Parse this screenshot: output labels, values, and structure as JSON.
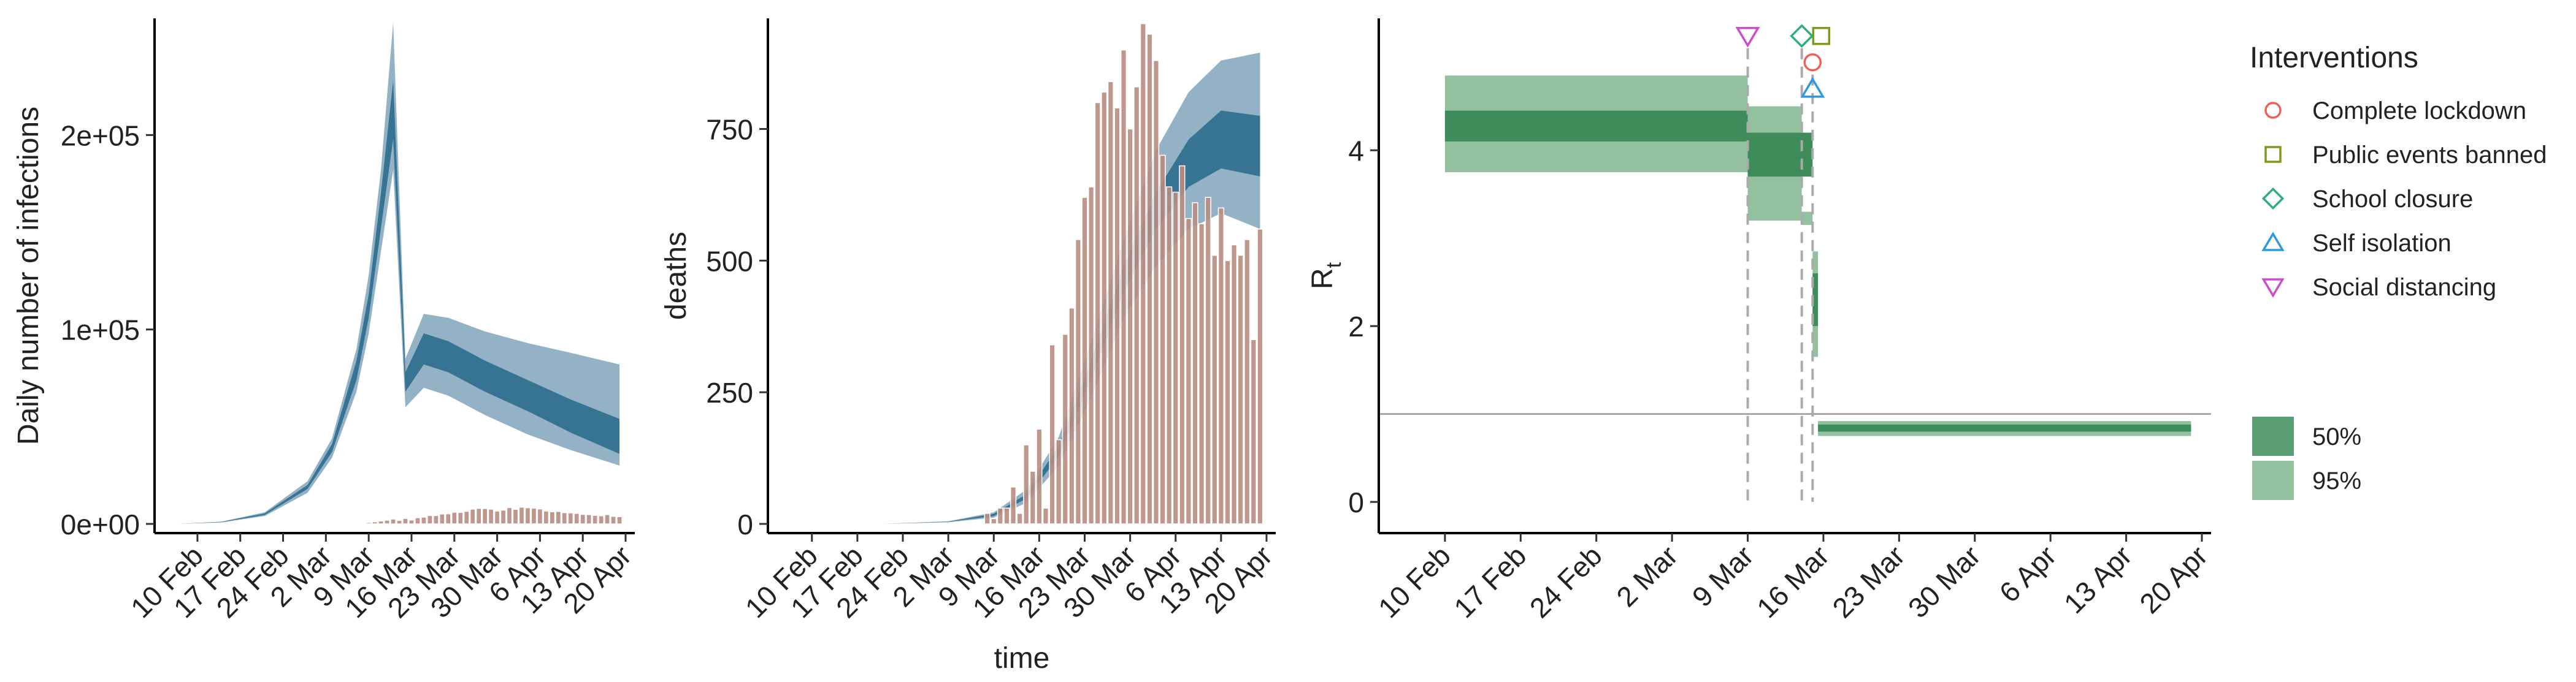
{
  "colors": {
    "infection_bar": "#b98c80",
    "band_95_blue": "#8aabc0",
    "band_50_blue": "#2f6f8f",
    "band_95_green": "#93c09f",
    "band_50_green": "#3d8c5a",
    "lockdown": "#f0605a",
    "events": "#7c9a1c",
    "school": "#2ab07a",
    "isolation": "#2a9adf",
    "distancing": "#cc4ccc"
  },
  "chart_data": [
    {
      "type": "area",
      "title": "",
      "xlabel": "",
      "ylabel": "Daily number of infections",
      "x_range": [
        "2020-02-07",
        "2020-04-20"
      ],
      "ylim": [
        0,
        260000
      ],
      "x_tick_labels": [
        "10 Feb",
        "17 Feb",
        "24 Feb",
        "2 Mar",
        "9 Mar",
        "16 Mar",
        "23 Mar",
        "30 Mar",
        "6 Apr",
        "13 Apr",
        "20 Apr"
      ],
      "y_tick_labels": [
        "0e+00",
        "1e+05",
        "2e+05"
      ],
      "y_ticks": [
        0,
        100000,
        200000
      ],
      "series": [
        {
          "role": "ribbon_95",
          "x": [
            "2020-02-07",
            "2020-02-14",
            "2020-02-21",
            "2020-02-28",
            "2020-03-03",
            "2020-03-07",
            "2020-03-09",
            "2020-03-11",
            "2020-03-13",
            "2020-03-15",
            "2020-03-18",
            "2020-03-22",
            "2020-03-28",
            "2020-04-04",
            "2020-04-11",
            "2020-04-19"
          ],
          "lower": [
            0,
            800,
            4000,
            16000,
            34000,
            68000,
            98000,
            140000,
            182000,
            60000,
            70000,
            66000,
            56000,
            46000,
            38000,
            30000
          ],
          "upper": [
            0,
            1200,
            6000,
            22000,
            44000,
            90000,
            128000,
            182000,
            258000,
            85000,
            108000,
            106000,
            99000,
            93000,
            88000,
            82000
          ]
        },
        {
          "role": "ribbon_50",
          "x": [
            "2020-02-07",
            "2020-02-14",
            "2020-02-21",
            "2020-02-28",
            "2020-03-03",
            "2020-03-07",
            "2020-03-09",
            "2020-03-11",
            "2020-03-13",
            "2020-03-15",
            "2020-03-18",
            "2020-03-22",
            "2020-03-28",
            "2020-04-04",
            "2020-04-11",
            "2020-04-19"
          ],
          "lower": [
            0,
            900,
            4600,
            18000,
            37000,
            74000,
            106000,
            152000,
            198000,
            68000,
            82000,
            78000,
            68000,
            58000,
            47000,
            36000
          ],
          "upper": [
            0,
            1100,
            5400,
            20000,
            41000,
            84000,
            118000,
            170000,
            228000,
            78000,
            98000,
            94000,
            84000,
            74000,
            64000,
            54000
          ]
        },
        {
          "role": "reported_cases_bars",
          "x": [
            "2020-03-08",
            "2020-03-09",
            "2020-03-10",
            "2020-03-11",
            "2020-03-12",
            "2020-03-13",
            "2020-03-14",
            "2020-03-15",
            "2020-03-16",
            "2020-03-17",
            "2020-03-18",
            "2020-03-19",
            "2020-03-20",
            "2020-03-21",
            "2020-03-22",
            "2020-03-23",
            "2020-03-24",
            "2020-03-25",
            "2020-03-26",
            "2020-03-27",
            "2020-03-28",
            "2020-03-29",
            "2020-03-30",
            "2020-03-31",
            "2020-04-01",
            "2020-04-02",
            "2020-04-03",
            "2020-04-04",
            "2020-04-05",
            "2020-04-06",
            "2020-04-07",
            "2020-04-08",
            "2020-04-09",
            "2020-04-10",
            "2020-04-11",
            "2020-04-12",
            "2020-04-13",
            "2020-04-14",
            "2020-04-15",
            "2020-04-16",
            "2020-04-17",
            "2020-04-18",
            "2020-04-19"
          ],
          "values": [
            400,
            700,
            1100,
            1500,
            1900,
            2500,
            1800,
            2800,
            2000,
            3200,
            3500,
            4300,
            4300,
            5100,
            5200,
            6000,
            5900,
            6500,
            7600,
            8000,
            7900,
            7600,
            6600,
            7100,
            8400,
            7500,
            8600,
            8300,
            8100,
            7700,
            6600,
            6200,
            6400,
            5800,
            5700,
            5400,
            4900,
            4800,
            4400,
            4200,
            4800,
            3900,
            3700
          ]
        }
      ]
    },
    {
      "type": "area",
      "title": "",
      "xlabel": "time",
      "ylabel": "deaths",
      "x_range": [
        "2020-02-07",
        "2020-04-20"
      ],
      "ylim": [
        0,
        960
      ],
      "x_tick_labels": [
        "10 Feb",
        "17 Feb",
        "24 Feb",
        "2 Mar",
        "9 Mar",
        "16 Mar",
        "23 Mar",
        "30 Mar",
        "6 Apr",
        "13 Apr",
        "20 Apr"
      ],
      "y_tick_labels": [
        "0",
        "250",
        "500",
        "750"
      ],
      "y_ticks": [
        0,
        250,
        500,
        750
      ],
      "series": [
        {
          "role": "ribbon_95",
          "x": [
            "2020-02-07",
            "2020-02-21",
            "2020-03-02",
            "2020-03-09",
            "2020-03-14",
            "2020-03-19",
            "2020-03-24",
            "2020-03-29",
            "2020-04-03",
            "2020-04-08",
            "2020-04-13",
            "2020-04-19"
          ],
          "lower": [
            0,
            0,
            3,
            12,
            40,
            110,
            240,
            390,
            490,
            560,
            590,
            560
          ],
          "upper": [
            0,
            0,
            5,
            22,
            65,
            165,
            345,
            540,
            710,
            820,
            880,
            895
          ]
        },
        {
          "role": "ribbon_50",
          "x": [
            "2020-02-07",
            "2020-02-21",
            "2020-03-02",
            "2020-03-09",
            "2020-03-14",
            "2020-03-19",
            "2020-03-24",
            "2020-03-29",
            "2020-04-03",
            "2020-04-08",
            "2020-04-13",
            "2020-04-19"
          ],
          "lower": [
            0,
            0,
            4,
            15,
            48,
            128,
            275,
            440,
            560,
            640,
            675,
            660
          ],
          "upper": [
            0,
            0,
            4.5,
            19,
            56,
            148,
            310,
            490,
            630,
            730,
            785,
            775
          ]
        },
        {
          "role": "reported_deaths_bars",
          "x": [
            "2020-03-08",
            "2020-03-09",
            "2020-03-10",
            "2020-03-11",
            "2020-03-12",
            "2020-03-13",
            "2020-03-14",
            "2020-03-15",
            "2020-03-16",
            "2020-03-17",
            "2020-03-18",
            "2020-03-19",
            "2020-03-20",
            "2020-03-21",
            "2020-03-22",
            "2020-03-23",
            "2020-03-24",
            "2020-03-25",
            "2020-03-26",
            "2020-03-27",
            "2020-03-28",
            "2020-03-29",
            "2020-03-30",
            "2020-03-31",
            "2020-04-01",
            "2020-04-02",
            "2020-04-03",
            "2020-04-04",
            "2020-04-05",
            "2020-04-06",
            "2020-04-07",
            "2020-04-08",
            "2020-04-09",
            "2020-04-10",
            "2020-04-11",
            "2020-04-12",
            "2020-04-13",
            "2020-04-14",
            "2020-04-15",
            "2020-04-16",
            "2020-04-17",
            "2020-04-18",
            "2020-04-19"
          ],
          "values": [
            20,
            10,
            30,
            30,
            70,
            20,
            150,
            100,
            180,
            30,
            340,
            160,
            360,
            410,
            540,
            620,
            640,
            800,
            820,
            840,
            790,
            900,
            750,
            830,
            950,
            930,
            880,
            700,
            640,
            630,
            680,
            580,
            610,
            570,
            620,
            510,
            600,
            500,
            530,
            510,
            540,
            350,
            560
          ]
        }
      ]
    },
    {
      "type": "area",
      "title": "",
      "xlabel": "",
      "ylabel": "R",
      "ylabel_subscript": "t",
      "x_range": [
        "2020-02-07",
        "2020-04-20"
      ],
      "ylim": [
        -0.25,
        5.5
      ],
      "x_tick_labels": [
        "10 Feb",
        "17 Feb",
        "24 Feb",
        "2 Mar",
        "9 Mar",
        "16 Mar",
        "23 Mar",
        "30 Mar",
        "6 Apr",
        "13 Apr",
        "20 Apr"
      ],
      "y_tick_labels": [
        "0",
        "2",
        "4"
      ],
      "y_ticks": [
        0,
        2,
        4
      ],
      "reference_line": 1,
      "series": [
        {
          "role": "ribbon_95",
          "x": [
            "2020-02-10",
            "2020-03-09",
            "2020-03-09",
            "2020-03-14",
            "2020-03-14",
            "2020-03-15",
            "2020-03-15",
            "2020-03-15.5",
            "2020-03-15.5",
            "2020-04-19"
          ],
          "lower": [
            3.75,
            3.75,
            3.2,
            3.2,
            3.15,
            3.15,
            1.65,
            1.65,
            0.75,
            0.75
          ],
          "upper": [
            4.85,
            4.85,
            4.5,
            4.5,
            3.3,
            3.3,
            2.85,
            2.85,
            0.92,
            0.92
          ]
        },
        {
          "role": "ribbon_50",
          "x": [
            "2020-02-10",
            "2020-03-09",
            "2020-03-09",
            "2020-03-14",
            "2020-03-14",
            "2020-03-15",
            "2020-03-15",
            "2020-03-15.5",
            "2020-03-15.5",
            "2020-04-19"
          ],
          "lower": [
            4.1,
            4.1,
            3.7,
            3.7,
            3.7,
            3.7,
            2.0,
            2.0,
            0.8,
            0.8
          ],
          "upper": [
            4.45,
            4.45,
            4.2,
            4.2,
            4.2,
            4.2,
            2.6,
            2.6,
            0.88,
            0.88
          ]
        }
      ],
      "interventions": [
        {
          "name": "Complete lockdown",
          "date": "2020-03-15",
          "y": 5.0,
          "shape": "circle",
          "color": "#f0605a"
        },
        {
          "name": "Public events banned",
          "date": "2020-03-15",
          "y": 5.3,
          "shape": "square",
          "color": "#7c9a1c"
        },
        {
          "name": "School closure",
          "date": "2020-03-14",
          "y": 5.3,
          "shape": "diamond",
          "color": "#2ab07a"
        },
        {
          "name": "Self isolation",
          "date": "2020-03-15",
          "y": 4.7,
          "shape": "triangle-up",
          "color": "#2a9adf"
        },
        {
          "name": "Social distancing",
          "date": "2020-03-09",
          "y": 5.3,
          "shape": "triangle-down",
          "color": "#cc4ccc"
        }
      ],
      "legend": {
        "placement": "right",
        "interventions_title": "Interventions",
        "interval_entries": [
          "50%",
          "95%"
        ]
      }
    }
  ]
}
